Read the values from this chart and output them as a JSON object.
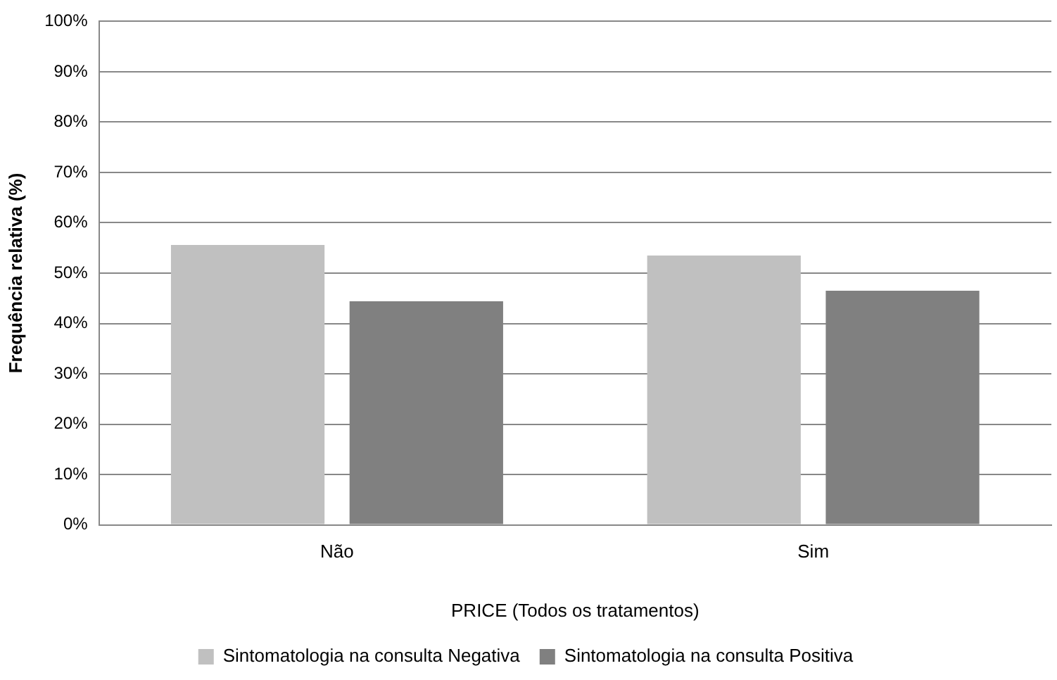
{
  "chart_data": {
    "type": "bar",
    "xlabel": "PRICE (Todos os tratamentos)",
    "ylabel": "Frequência relativa (%)",
    "categories": [
      "Não",
      "Sim"
    ],
    "series": [
      {
        "name": "Sintomatologia na consulta Negativa",
        "color": "#c0c0c0",
        "values": [
          55.6,
          53.5
        ]
      },
      {
        "name": "Sintomatologia na consulta Positiva",
        "color": "#808080",
        "values": [
          44.4,
          46.5
        ]
      }
    ],
    "ylim": [
      0,
      100
    ],
    "yticks": [
      {
        "value": 0,
        "label": "0%"
      },
      {
        "value": 10,
        "label": "10%"
      },
      {
        "value": 20,
        "label": "20%"
      },
      {
        "value": 30,
        "label": "30%"
      },
      {
        "value": 40,
        "label": "40%"
      },
      {
        "value": 50,
        "label": "50%"
      },
      {
        "value": 60,
        "label": "60%"
      },
      {
        "value": 70,
        "label": "70%"
      },
      {
        "value": 80,
        "label": "80%"
      },
      {
        "value": 90,
        "label": "90%"
      },
      {
        "value": 100,
        "label": "100%"
      }
    ],
    "grid": "y",
    "legend": "bottom"
  }
}
